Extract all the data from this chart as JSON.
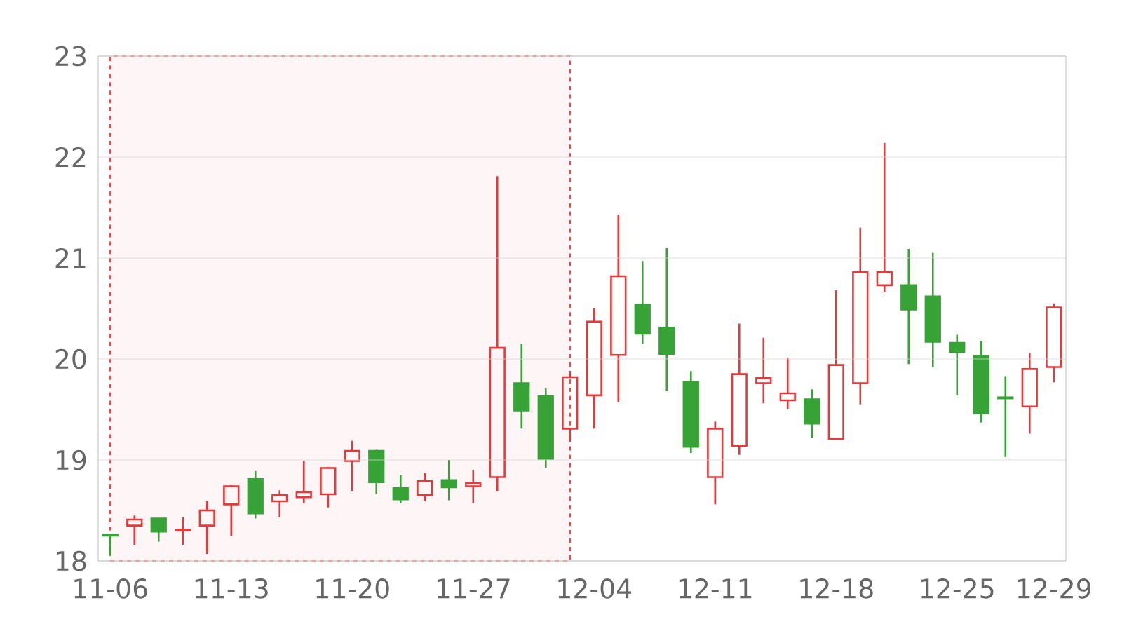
{
  "chart_data": {
    "type": "candlestick",
    "categories": [
      "11-06",
      null,
      null,
      null,
      null,
      "11-13",
      null,
      null,
      null,
      null,
      "11-20",
      null,
      null,
      null,
      null,
      "11-27",
      null,
      null,
      null,
      null,
      "12-04",
      null,
      null,
      null,
      null,
      "12-11",
      null,
      null,
      null,
      null,
      "12-18",
      null,
      null,
      null,
      null,
      "12-25",
      null,
      null,
      null,
      "12-29"
    ],
    "ohlc": [
      [
        18.26,
        18.26,
        18.05,
        18.25
      ],
      [
        18.35,
        18.45,
        18.16,
        18.41
      ],
      [
        18.42,
        18.42,
        18.19,
        18.29
      ],
      [
        18.3,
        18.43,
        18.16,
        18.31
      ],
      [
        18.35,
        18.59,
        18.07,
        18.5
      ],
      [
        18.56,
        18.75,
        18.25,
        18.74
      ],
      [
        18.81,
        18.89,
        18.42,
        18.47
      ],
      [
        18.59,
        18.7,
        18.43,
        18.65
      ],
      [
        18.63,
        18.99,
        18.57,
        18.68
      ],
      [
        18.66,
        18.93,
        18.53,
        18.92
      ],
      [
        18.99,
        19.19,
        18.69,
        19.09
      ],
      [
        19.09,
        19.1,
        18.66,
        18.78
      ],
      [
        18.72,
        18.85,
        18.57,
        18.61
      ],
      [
        18.65,
        18.87,
        18.59,
        18.79
      ],
      [
        18.8,
        19.0,
        18.6,
        18.73
      ],
      [
        18.74,
        18.9,
        18.57,
        18.77
      ],
      [
        18.83,
        21.81,
        18.69,
        20.11
      ],
      [
        19.76,
        20.15,
        19.31,
        19.49
      ],
      [
        19.63,
        19.71,
        18.92,
        19.01
      ],
      [
        19.31,
        19.88,
        19.19,
        19.82
      ],
      [
        19.64,
        20.5,
        19.31,
        20.37
      ],
      [
        20.04,
        21.43,
        19.57,
        20.82
      ],
      [
        20.54,
        20.97,
        20.15,
        20.25
      ],
      [
        20.31,
        21.1,
        19.68,
        20.05
      ],
      [
        19.77,
        19.88,
        19.07,
        19.13
      ],
      [
        18.83,
        19.38,
        18.56,
        19.31
      ],
      [
        19.14,
        20.35,
        19.05,
        19.85
      ],
      [
        19.76,
        20.21,
        19.56,
        19.81
      ],
      [
        19.59,
        20.01,
        19.5,
        19.66
      ],
      [
        19.6,
        19.7,
        19.22,
        19.36
      ],
      [
        19.21,
        20.68,
        19.21,
        19.94
      ],
      [
        19.76,
        21.3,
        19.55,
        20.86
      ],
      [
        20.73,
        22.14,
        20.66,
        20.86
      ],
      [
        20.73,
        21.09,
        19.95,
        20.49
      ],
      [
        20.62,
        21.05,
        19.92,
        20.17
      ],
      [
        20.16,
        20.24,
        19.64,
        20.07
      ],
      [
        20.03,
        20.18,
        19.37,
        19.46
      ],
      [
        19.62,
        19.83,
        19.03,
        19.61
      ],
      [
        19.53,
        20.06,
        19.26,
        19.9
      ],
      [
        19.92,
        20.55,
        19.77,
        20.51
      ]
    ],
    "colors": [
      "#37a337",
      "#e8393a",
      "#37a337",
      "#e8393a",
      "#e8393a",
      "#e8393a",
      "#37a337",
      "#e8393a",
      "#e8393a",
      "#e8393a",
      "#e8393a",
      "#37a337",
      "#37a337",
      "#e8393a",
      "#37a337",
      "#e8393a",
      "#e8393a",
      "#37a337",
      "#37a337",
      "#e8393a",
      "#e8393a",
      "#e8393a",
      "#37a337",
      "#37a337",
      "#37a337",
      "#e8393a",
      "#e8393a",
      "#e8393a",
      "#e8393a",
      "#37a337",
      "#e8393a",
      "#e8393a",
      "#e8393a",
      "#37a337",
      "#37a337",
      "#37a337",
      "#37a337",
      "#37a337",
      "#e8393a",
      "#e8393a"
    ],
    "ylim": [
      18,
      23
    ],
    "yticks": [
      18,
      19,
      20,
      21,
      22,
      23
    ],
    "grid": "y"
  }
}
